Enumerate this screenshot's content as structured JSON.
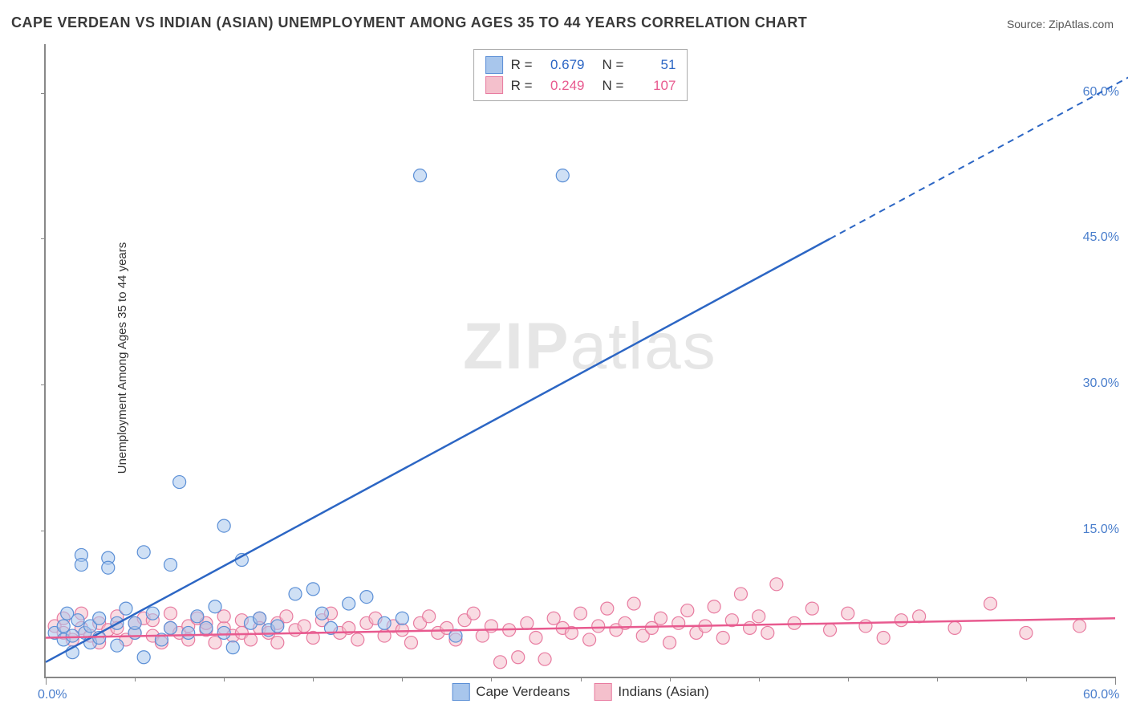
{
  "title": "CAPE VERDEAN VS INDIAN (ASIAN) UNEMPLOYMENT AMONG AGES 35 TO 44 YEARS CORRELATION CHART",
  "source_prefix": "Source: ",
  "source": "ZipAtlas.com",
  "ylabel": "Unemployment Among Ages 35 to 44 years",
  "watermark_bold": "ZIP",
  "watermark_rest": "atlas",
  "chart": {
    "type": "scatter",
    "xlim": [
      0,
      60
    ],
    "ylim": [
      0,
      65
    ],
    "xticks": [
      0,
      60
    ],
    "xtick_labels": [
      "0.0%",
      "60.0%"
    ],
    "yticks": [
      15,
      30,
      45,
      60
    ],
    "ytick_labels": [
      "15.0%",
      "30.0%",
      "45.0%",
      "60.0%"
    ],
    "minor_xticks": [
      5,
      10,
      15,
      20,
      25,
      30,
      35,
      40,
      45,
      50,
      55
    ],
    "background_color": "#ffffff",
    "axis_color": "#888888",
    "tick_label_color": "#4a7ecc",
    "series": [
      {
        "name": "Cape Verdeans",
        "color_fill": "#a8c6ec",
        "color_stroke": "#5b8fd6",
        "marker_radius": 8,
        "R": 0.679,
        "N": 51,
        "trend": {
          "x1": 0,
          "y1": 1.5,
          "x2": 44,
          "y2": 45,
          "x2_dash": 65,
          "y2_dash": 65.8,
          "stroke": "#2c66c4",
          "width": 2.5
        },
        "points": [
          [
            0.5,
            4.5
          ],
          [
            1,
            5.2
          ],
          [
            1,
            3.8
          ],
          [
            1.2,
            6.5
          ],
          [
            1.5,
            4.2
          ],
          [
            1.5,
            2.5
          ],
          [
            1.8,
            5.8
          ],
          [
            2,
            12.5
          ],
          [
            2,
            11.5
          ],
          [
            2.2,
            4.5
          ],
          [
            2.5,
            3.5
          ],
          [
            2.5,
            5.2
          ],
          [
            3,
            6.0
          ],
          [
            3,
            4.0
          ],
          [
            3.5,
            12.2
          ],
          [
            3.5,
            11.2
          ],
          [
            4,
            5.5
          ],
          [
            4,
            3.2
          ],
          [
            4.5,
            7.0
          ],
          [
            5,
            4.5
          ],
          [
            5,
            5.5
          ],
          [
            5.5,
            12.8
          ],
          [
            5.5,
            2.0
          ],
          [
            6,
            6.5
          ],
          [
            6.5,
            3.8
          ],
          [
            7,
            11.5
          ],
          [
            7,
            5.0
          ],
          [
            7.5,
            20.0
          ],
          [
            8,
            4.5
          ],
          [
            8.5,
            6.2
          ],
          [
            9,
            5.0
          ],
          [
            9.5,
            7.2
          ],
          [
            10,
            15.5
          ],
          [
            10,
            4.5
          ],
          [
            10.5,
            3.0
          ],
          [
            11,
            12.0
          ],
          [
            11.5,
            5.5
          ],
          [
            12,
            6.0
          ],
          [
            12.5,
            4.8
          ],
          [
            13,
            5.2
          ],
          [
            14,
            8.5
          ],
          [
            15,
            9.0
          ],
          [
            15.5,
            6.5
          ],
          [
            16,
            5.0
          ],
          [
            17,
            7.5
          ],
          [
            18,
            8.2
          ],
          [
            19,
            5.5
          ],
          [
            20,
            6.0
          ],
          [
            21,
            51.5
          ],
          [
            23,
            4.2
          ],
          [
            29,
            51.5
          ]
        ]
      },
      {
        "name": "Indians (Asian)",
        "color_fill": "#f4c0cc",
        "color_stroke": "#e87ba0",
        "marker_radius": 8,
        "R": 0.249,
        "N": 107,
        "trend": {
          "x1": 0,
          "y1": 4.0,
          "x2": 60,
          "y2": 6.0,
          "stroke": "#e85a8f",
          "width": 2.5
        },
        "points": [
          [
            0.5,
            5.2
          ],
          [
            1,
            6.0
          ],
          [
            1,
            4.5
          ],
          [
            1.5,
            3.8
          ],
          [
            2,
            5.0
          ],
          [
            2,
            6.5
          ],
          [
            2.5,
            4.2
          ],
          [
            3,
            5.5
          ],
          [
            3,
            3.5
          ],
          [
            3.5,
            4.8
          ],
          [
            4,
            6.2
          ],
          [
            4,
            5.0
          ],
          [
            4.5,
            3.8
          ],
          [
            5,
            5.5
          ],
          [
            5,
            4.5
          ],
          [
            5.5,
            6.0
          ],
          [
            6,
            4.2
          ],
          [
            6,
            5.8
          ],
          [
            6.5,
            3.5
          ],
          [
            7,
            5.0
          ],
          [
            7,
            6.5
          ],
          [
            7.5,
            4.5
          ],
          [
            8,
            5.2
          ],
          [
            8,
            3.8
          ],
          [
            8.5,
            6.0
          ],
          [
            9,
            4.8
          ],
          [
            9,
            5.5
          ],
          [
            9.5,
            3.5
          ],
          [
            10,
            5.0
          ],
          [
            10,
            6.2
          ],
          [
            10.5,
            4.2
          ],
          [
            11,
            5.8
          ],
          [
            11,
            4.5
          ],
          [
            11.5,
            3.8
          ],
          [
            12,
            6.0
          ],
          [
            12,
            5.0
          ],
          [
            12.5,
            4.5
          ],
          [
            13,
            5.5
          ],
          [
            13,
            3.5
          ],
          [
            13.5,
            6.2
          ],
          [
            14,
            4.8
          ],
          [
            14.5,
            5.2
          ],
          [
            15,
            4.0
          ],
          [
            15.5,
            5.8
          ],
          [
            16,
            6.5
          ],
          [
            16.5,
            4.5
          ],
          [
            17,
            5.0
          ],
          [
            17.5,
            3.8
          ],
          [
            18,
            5.5
          ],
          [
            18.5,
            6.0
          ],
          [
            19,
            4.2
          ],
          [
            19.5,
            5.2
          ],
          [
            20,
            4.8
          ],
          [
            20.5,
            3.5
          ],
          [
            21,
            5.5
          ],
          [
            21.5,
            6.2
          ],
          [
            22,
            4.5
          ],
          [
            22.5,
            5.0
          ],
          [
            23,
            3.8
          ],
          [
            23.5,
            5.8
          ],
          [
            24,
            6.5
          ],
          [
            24.5,
            4.2
          ],
          [
            25,
            5.2
          ],
          [
            25.5,
            1.5
          ],
          [
            26,
            4.8
          ],
          [
            26.5,
            2.0
          ],
          [
            27,
            5.5
          ],
          [
            27.5,
            4.0
          ],
          [
            28,
            1.8
          ],
          [
            28.5,
            6.0
          ],
          [
            29,
            5.0
          ],
          [
            29.5,
            4.5
          ],
          [
            30,
            6.5
          ],
          [
            30.5,
            3.8
          ],
          [
            31,
            5.2
          ],
          [
            31.5,
            7.0
          ],
          [
            32,
            4.8
          ],
          [
            32.5,
            5.5
          ],
          [
            33,
            7.5
          ],
          [
            33.5,
            4.2
          ],
          [
            34,
            5.0
          ],
          [
            34.5,
            6.0
          ],
          [
            35,
            3.5
          ],
          [
            35.5,
            5.5
          ],
          [
            36,
            6.8
          ],
          [
            36.5,
            4.5
          ],
          [
            37,
            5.2
          ],
          [
            37.5,
            7.2
          ],
          [
            38,
            4.0
          ],
          [
            38.5,
            5.8
          ],
          [
            39,
            8.5
          ],
          [
            39.5,
            5.0
          ],
          [
            40,
            6.2
          ],
          [
            40.5,
            4.5
          ],
          [
            41,
            9.5
          ],
          [
            42,
            5.5
          ],
          [
            43,
            7.0
          ],
          [
            44,
            4.8
          ],
          [
            45,
            6.5
          ],
          [
            46,
            5.2
          ],
          [
            47,
            4.0
          ],
          [
            48,
            5.8
          ],
          [
            49,
            6.2
          ],
          [
            51,
            5.0
          ],
          [
            53,
            7.5
          ],
          [
            55,
            4.5
          ],
          [
            58,
            5.2
          ]
        ]
      }
    ],
    "stat_legend": {
      "label_R": "R = ",
      "label_N": "N = ",
      "text_color_label": "#333333"
    },
    "bottom_legend": {
      "items": [
        "Cape Verdeans",
        "Indians (Asian)"
      ]
    }
  }
}
